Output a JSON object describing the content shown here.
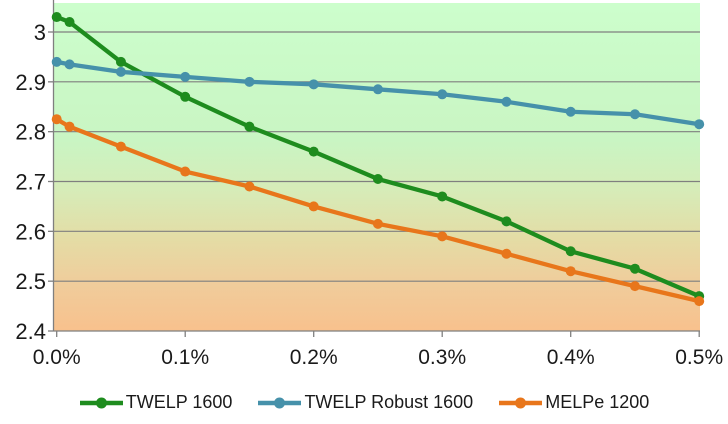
{
  "chart_data": {
    "type": "line",
    "x_unit": "percent",
    "x": [
      0,
      0.01,
      0.05,
      0.1,
      0.15,
      0.2,
      0.25,
      0.3,
      0.35,
      0.4,
      0.45,
      0.5
    ],
    "series": [
      {
        "name": "TWELP 1600",
        "color": "#1E8C1E",
        "values": [
          3.03,
          3.02,
          2.94,
          2.87,
          2.81,
          2.76,
          2.705,
          2.67,
          2.62,
          2.56,
          2.525,
          2.47
        ]
      },
      {
        "name": "TWELP Robust 1600",
        "color": "#4691AA",
        "values": [
          2.94,
          2.935,
          2.92,
          2.91,
          2.9,
          2.895,
          2.885,
          2.875,
          2.86,
          2.84,
          2.835,
          2.815
        ]
      },
      {
        "name": "MELPe 1200",
        "color": "#E8761B",
        "values": [
          2.825,
          2.81,
          2.77,
          2.72,
          2.69,
          2.65,
          2.615,
          2.59,
          2.555,
          2.52,
          2.49,
          2.46
        ]
      }
    ],
    "y_ticks": [
      "3",
      "2.9",
      "2.8",
      "2.7",
      "2.6",
      "2.5",
      "2.4"
    ],
    "y_tick_values": [
      3.0,
      2.9,
      2.8,
      2.7,
      2.6,
      2.5,
      2.4
    ],
    "x_ticks": [
      "0.0%",
      "0.1%",
      "0.2%",
      "0.3%",
      "0.4%",
      "0.5%"
    ],
    "x_tick_values": [
      0,
      0.1,
      0.2,
      0.3,
      0.4,
      0.5
    ],
    "ylim": [
      2.4,
      3.058
    ],
    "xlim": [
      0,
      0.5
    ],
    "grid": true,
    "legend_position": "bottom",
    "plot_bg_gradient": [
      "#CCFECC",
      "#C9F5C3",
      "#D7EBB7",
      "#E4DCA5",
      "#F0CC9B",
      "#F8C18D"
    ],
    "axis_color": "#7F7F7F",
    "label_color": "#1A1A1A"
  }
}
